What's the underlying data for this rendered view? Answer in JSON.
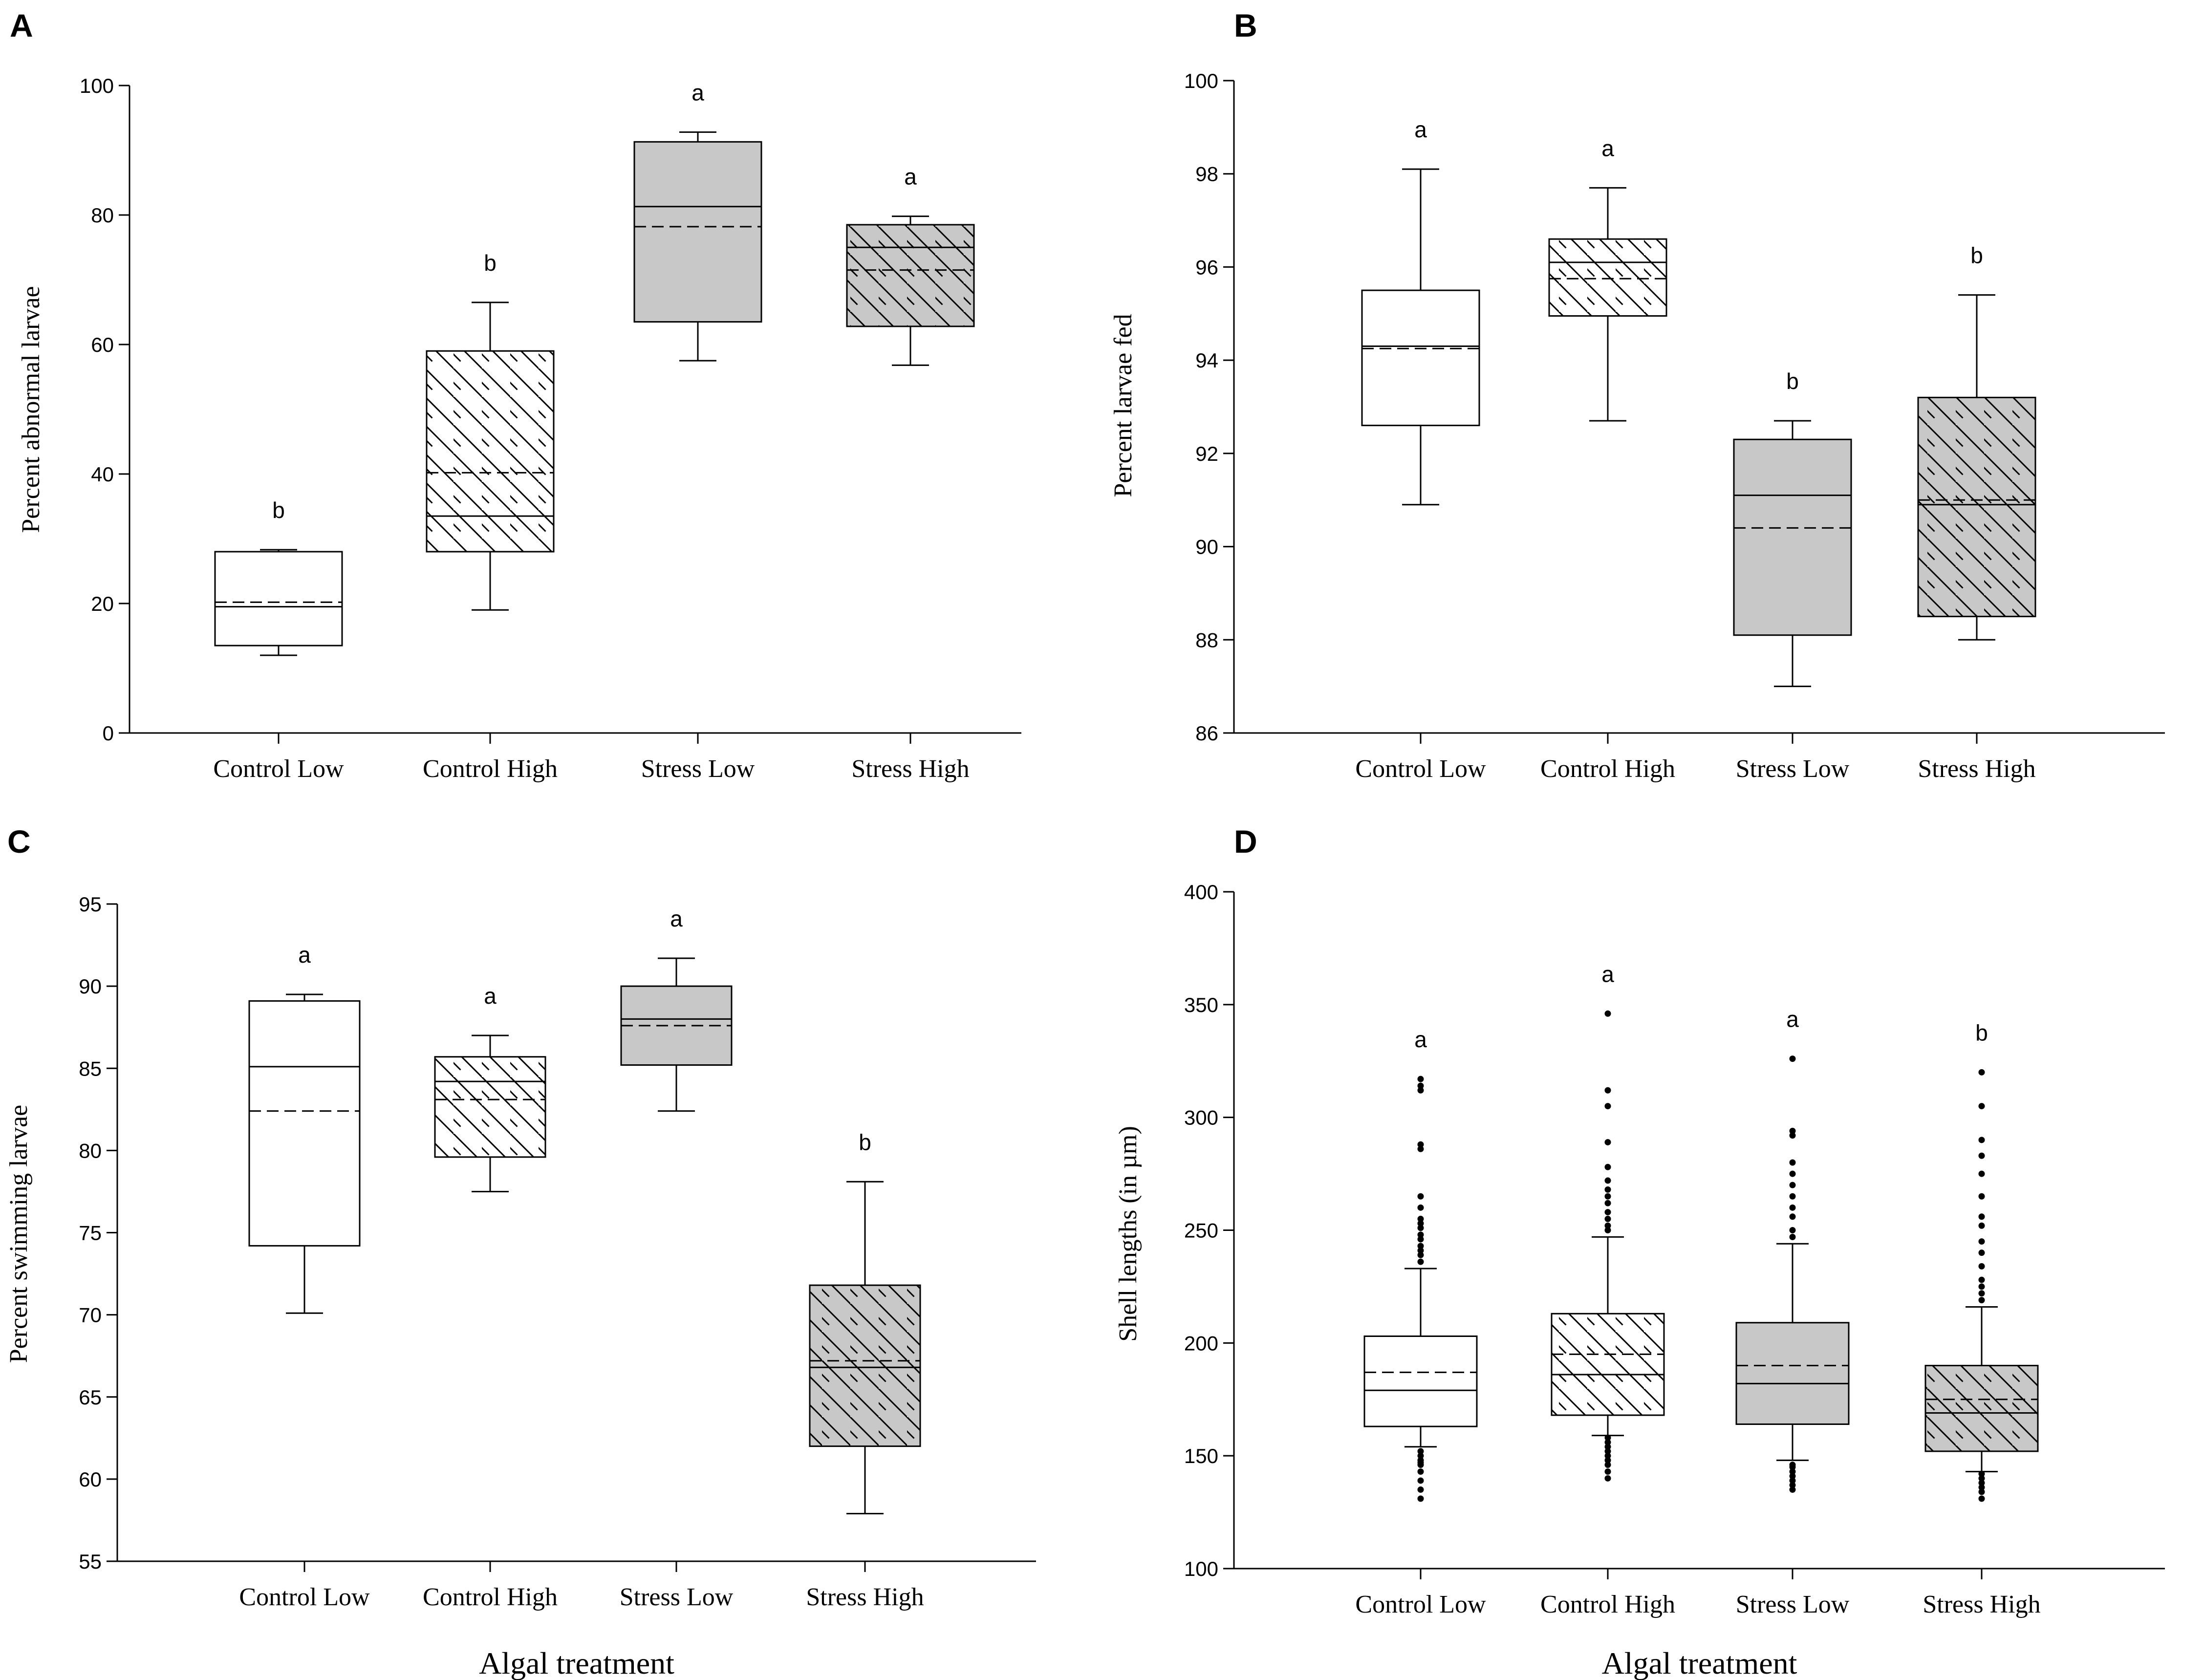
{
  "colors": {
    "background": "#ffffff",
    "ink": "#000000",
    "control_fill": "#ffffff",
    "stress_fill": "#c8c8c8"
  },
  "chart_data": [
    {
      "type": "box",
      "panel": "A",
      "ylabel": "Percent abnormal larvae",
      "xlabel": "",
      "ylim": [
        0,
        100
      ],
      "yticks": [
        0,
        20,
        40,
        60,
        80,
        100
      ],
      "categories": [
        "Control Low",
        "Control High",
        "Stress Low",
        "Stress High"
      ],
      "boxes": [
        {
          "category": "Control Low",
          "fill": "control",
          "hatch": false,
          "whisker_low": 12,
          "q1": 13.5,
          "median": 19.5,
          "mean": 20.2,
          "q3": 28,
          "whisker_high": 28.3,
          "letter": "b"
        },
        {
          "category": "Control High",
          "fill": "control",
          "hatch": true,
          "whisker_low": 19,
          "q1": 28,
          "median": 33.5,
          "mean": 40.2,
          "q3": 59,
          "whisker_high": 66.5,
          "letter": "b"
        },
        {
          "category": "Stress Low",
          "fill": "stress",
          "hatch": false,
          "whisker_low": 57.5,
          "q1": 63.5,
          "median": 81.3,
          "mean": 78.2,
          "q3": 91.3,
          "whisker_high": 92.8,
          "letter": "a"
        },
        {
          "category": "Stress High",
          "fill": "stress",
          "hatch": true,
          "whisker_low": 56.8,
          "q1": 62.8,
          "median": 75,
          "mean": 71.5,
          "q3": 78.5,
          "whisker_high": 79.8,
          "letter": "a"
        }
      ]
    },
    {
      "type": "box",
      "panel": "B",
      "ylabel": "Percent larvae fed",
      "xlabel": "",
      "ylim": [
        86,
        100
      ],
      "yticks": [
        86,
        88,
        90,
        92,
        94,
        96,
        98,
        100
      ],
      "categories": [
        "Control Low",
        "Control High",
        "Stress Low",
        "Stress High"
      ],
      "boxes": [
        {
          "category": "Control Low",
          "fill": "control",
          "hatch": false,
          "whisker_low": 90.9,
          "q1": 92.6,
          "median": 94.3,
          "mean": 94.25,
          "q3": 95.5,
          "whisker_high": 98.1,
          "letter": "a"
        },
        {
          "category": "Control High",
          "fill": "control",
          "hatch": true,
          "whisker_low": 92.7,
          "q1": 94.95,
          "median": 96.1,
          "mean": 95.75,
          "q3": 96.6,
          "whisker_high": 97.7,
          "letter": "a"
        },
        {
          "category": "Stress Low",
          "fill": "stress",
          "hatch": false,
          "whisker_low": 87.0,
          "q1": 88.1,
          "median": 91.1,
          "mean": 90.4,
          "q3": 92.3,
          "whisker_high": 92.7,
          "letter": "b"
        },
        {
          "category": "Stress High",
          "fill": "stress",
          "hatch": true,
          "whisker_low": 88.0,
          "q1": 88.5,
          "median": 90.9,
          "mean": 91.0,
          "q3": 93.2,
          "whisker_high": 95.4,
          "letter": "b"
        }
      ]
    },
    {
      "type": "box",
      "panel": "C",
      "ylabel": "Percent swimming larvae",
      "xlabel": "Algal treatment",
      "ylim": [
        55,
        95
      ],
      "yticks": [
        55,
        60,
        65,
        70,
        75,
        80,
        85,
        90,
        95
      ],
      "categories": [
        "Control Low",
        "Control High",
        "Stress Low",
        "Stress High"
      ],
      "boxes": [
        {
          "category": "Control Low",
          "fill": "control",
          "hatch": false,
          "whisker_low": 70.1,
          "q1": 74.2,
          "median": 85.1,
          "mean": 82.4,
          "q3": 89.1,
          "whisker_high": 89.5,
          "letter": "a"
        },
        {
          "category": "Control High",
          "fill": "control",
          "hatch": true,
          "whisker_low": 77.5,
          "q1": 79.6,
          "median": 84.2,
          "mean": 83.1,
          "q3": 85.7,
          "whisker_high": 87.0,
          "letter": "a"
        },
        {
          "category": "Stress Low",
          "fill": "stress",
          "hatch": false,
          "whisker_low": 82.4,
          "q1": 85.2,
          "median": 88.0,
          "mean": 87.6,
          "q3": 90.0,
          "whisker_high": 91.7,
          "letter": "a"
        },
        {
          "category": "Stress High",
          "fill": "stress",
          "hatch": true,
          "whisker_low": 57.9,
          "q1": 62.0,
          "median": 66.8,
          "mean": 67.2,
          "q3": 71.8,
          "whisker_high": 78.1,
          "letter": "b"
        }
      ]
    },
    {
      "type": "box",
      "panel": "D",
      "ylabel": "Shell lengths (in µm)",
      "xlabel": "Algal treatment",
      "ylim": [
        100,
        400
      ],
      "yticks": [
        100,
        150,
        200,
        250,
        300,
        350,
        400
      ],
      "categories": [
        "Control Low",
        "Control High",
        "Stress Low",
        "Stress High"
      ],
      "boxes": [
        {
          "category": "Control Low",
          "fill": "control",
          "hatch": false,
          "whisker_low": 154,
          "q1": 163,
          "median": 179,
          "mean": 187,
          "q3": 203,
          "whisker_high": 233,
          "letter": "a",
          "outliers": [
            131,
            135,
            139,
            143,
            146,
            147,
            148,
            150,
            152,
            236,
            239,
            241,
            243,
            246,
            248,
            251,
            253,
            255,
            260,
            265,
            286,
            288,
            312,
            314,
            317
          ]
        },
        {
          "category": "Control High",
          "fill": "control",
          "hatch": true,
          "whisker_low": 159,
          "q1": 168,
          "median": 186,
          "mean": 195,
          "q3": 213,
          "whisker_high": 247,
          "letter": "a",
          "outliers": [
            140,
            143,
            146,
            148,
            150,
            152,
            154,
            156,
            158,
            250,
            252,
            255,
            258,
            262,
            265,
            268,
            272,
            278,
            289,
            305,
            312,
            346
          ]
        },
        {
          "category": "Stress Low",
          "fill": "stress",
          "hatch": false,
          "whisker_low": 148,
          "q1": 164,
          "median": 182,
          "mean": 190,
          "q3": 209,
          "whisker_high": 244,
          "letter": "a",
          "outliers": [
            135,
            137,
            139,
            141,
            143,
            145,
            146,
            247,
            250,
            256,
            260,
            265,
            270,
            275,
            280,
            292,
            294,
            326
          ]
        },
        {
          "category": "Stress High",
          "fill": "stress",
          "hatch": true,
          "whisker_low": 143,
          "q1": 152,
          "median": 169,
          "mean": 175,
          "q3": 190,
          "whisker_high": 216,
          "letter": "b",
          "outliers": [
            131,
            134,
            136,
            138,
            140,
            142,
            219,
            222,
            225,
            228,
            234,
            240,
            245,
            252,
            256,
            265,
            275,
            283,
            290,
            305,
            320
          ]
        }
      ]
    }
  ]
}
